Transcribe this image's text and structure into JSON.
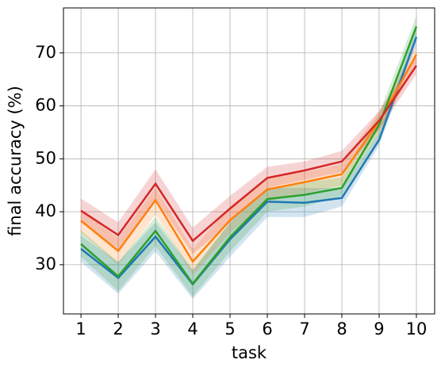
{
  "chart_data": {
    "type": "line",
    "xlabel": "task",
    "ylabel": "final accuracy (%)",
    "x": [
      1,
      2,
      3,
      4,
      5,
      6,
      7,
      8,
      9,
      10
    ],
    "xlim": [
      0.53,
      10.49
    ],
    "xticks": [
      1,
      2,
      3,
      4,
      5,
      6,
      7,
      8,
      9,
      10
    ],
    "ylim": [
      20.7,
      78.5
    ],
    "yticks": [
      30,
      40,
      50,
      60,
      70
    ],
    "grid": true,
    "series": [
      {
        "color": "#1f77b4",
        "values": [
          33.0,
          27.5,
          35.3,
          26.3,
          34.8,
          41.9,
          41.7,
          42.6,
          53.6,
          73.0
        ],
        "lower": [
          30.5,
          24.5,
          32.5,
          23.5,
          31.5,
          39.0,
          39.0,
          41.0,
          52.5,
          71.5
        ],
        "upper": [
          35.5,
          30.5,
          38.0,
          29.0,
          38.0,
          44.5,
          44.5,
          44.5,
          55.0,
          74.5
        ]
      },
      {
        "color": "#ff7f0e",
        "values": [
          38.3,
          32.6,
          42.2,
          30.6,
          38.4,
          44.2,
          45.6,
          47.1,
          57.0,
          69.7
        ],
        "lower": [
          36.0,
          30.0,
          39.5,
          28.0,
          36.0,
          42.0,
          43.5,
          45.0,
          55.0,
          68.0
        ],
        "upper": [
          40.5,
          35.0,
          44.5,
          33.0,
          41.0,
          46.5,
          47.5,
          49.0,
          59.0,
          71.5
        ]
      },
      {
        "color": "#2ca02c",
        "values": [
          33.9,
          27.8,
          36.4,
          26.4,
          35.2,
          42.4,
          43.2,
          44.5,
          56.4,
          75.0
        ],
        "lower": [
          31.5,
          25.0,
          33.5,
          24.0,
          32.5,
          40.0,
          41.0,
          43.0,
          54.0,
          73.0
        ],
        "upper": [
          36.5,
          30.5,
          39.0,
          29.0,
          38.0,
          44.5,
          45.5,
          46.5,
          58.5,
          77.0
        ]
      },
      {
        "color": "#d62728",
        "values": [
          40.2,
          35.6,
          45.3,
          34.5,
          40.6,
          46.4,
          47.8,
          49.5,
          57.2,
          67.6
        ],
        "lower": [
          38.0,
          33.0,
          42.5,
          32.0,
          38.0,
          44.5,
          46.0,
          47.5,
          55.5,
          66.0
        ],
        "upper": [
          42.5,
          38.0,
          48.0,
          37.0,
          43.0,
          48.5,
          49.5,
          51.5,
          59.0,
          69.5
        ]
      }
    ]
  }
}
